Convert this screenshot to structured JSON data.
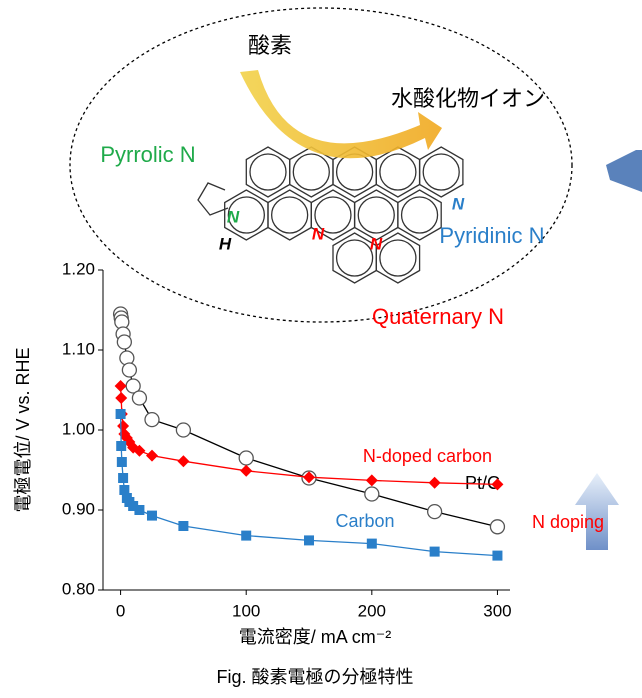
{
  "chart_data": {
    "type": "line",
    "y_label": "電極電位/ V vs. RHE",
    "x_label": "電流密度/ mA cm⁻²",
    "caption": "Fig. 酸素電極の分極特性",
    "xlim": [
      -14,
      310
    ],
    "ylim": [
      0.8,
      1.2
    ],
    "xticks": [
      0,
      100,
      200,
      300
    ],
    "yticks": [
      {
        "value": 0.8,
        "label": "0.80"
      },
      {
        "value": 0.9,
        "label": "0.90"
      },
      {
        "value": 1.0,
        "label": "1.00"
      },
      {
        "value": 1.1,
        "label": "1.10"
      },
      {
        "value": 1.2,
        "label": "1.20"
      }
    ],
    "x": [
      0,
      0.5,
      1,
      2,
      3,
      5,
      7,
      10,
      15,
      25,
      50,
      100,
      150,
      200,
      250,
      300
    ],
    "series": [
      {
        "name": "Pt/C",
        "color": "#000000",
        "marker": "circle",
        "values": [
          1.145,
          1.14,
          1.135,
          1.12,
          1.11,
          1.09,
          1.075,
          1.055,
          1.04,
          1.013,
          1.0,
          0.965,
          0.94,
          0.92,
          0.898,
          0.879
        ]
      },
      {
        "name": "N-doped carbon",
        "color": "#ff0000",
        "marker": "diamond",
        "values": [
          1.055,
          1.04,
          1.02,
          1.005,
          0.995,
          0.99,
          0.985,
          0.978,
          0.974,
          0.968,
          0.961,
          0.949,
          0.941,
          0.937,
          0.934,
          0.932
        ]
      },
      {
        "name": "Carbon",
        "color": "#2a7fc9",
        "marker": "square",
        "values": [
          1.02,
          0.98,
          0.96,
          0.94,
          0.925,
          0.915,
          0.91,
          0.905,
          0.9,
          0.893,
          0.88,
          0.868,
          0.862,
          0.858,
          0.848,
          0.843
        ]
      }
    ],
    "annotation": "N doping"
  },
  "diagram": {
    "oxygen": "酸素",
    "hydroxide": "水酸化物イオン",
    "pyrrolic": "Pyrrolic N",
    "pyridinic": "Pyridinic N",
    "quaternary": "Quaternary N",
    "atoms": [
      "N",
      "H",
      "N",
      "N",
      "N"
    ]
  }
}
